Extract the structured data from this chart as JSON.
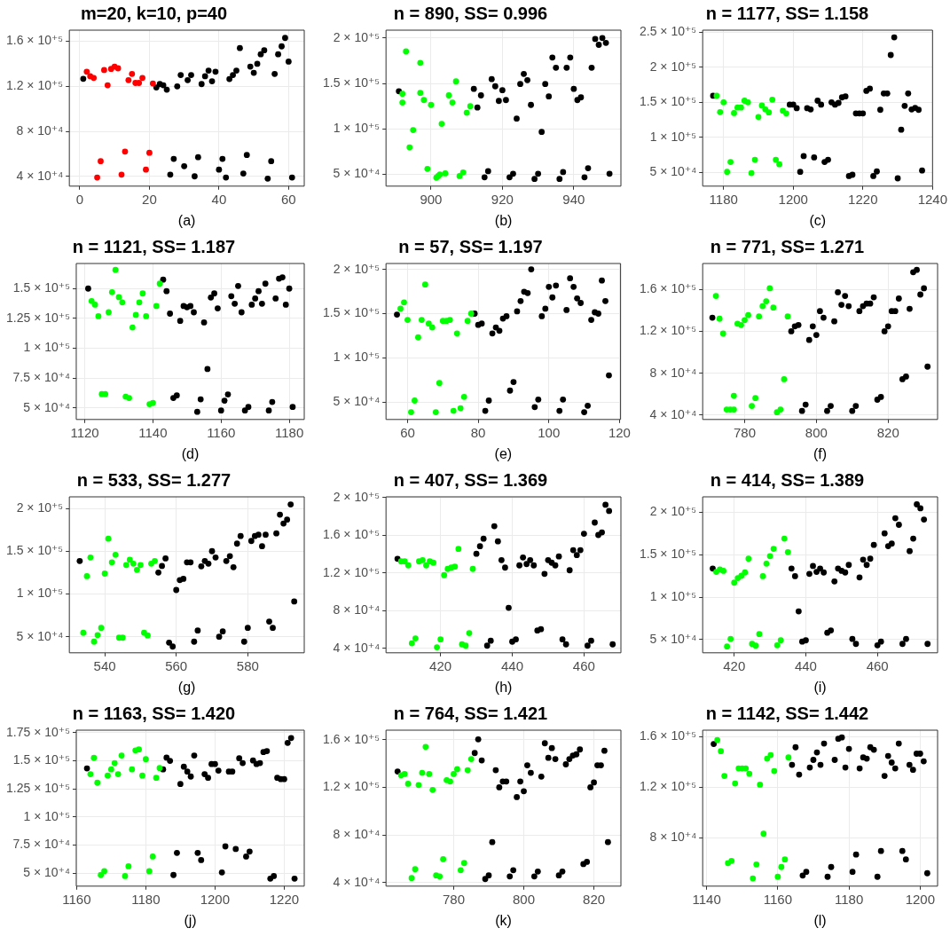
{
  "chart_data": [
    {
      "type": "scatter",
      "title": "m=20, k=10, p=40",
      "xlabel": "(a)",
      "xlim": [
        -3,
        64.5
      ],
      "ylim": [
        31300,
        169900
      ],
      "xticks": [
        0,
        20,
        40,
        60
      ],
      "yticks": [
        {
          "value": 40000,
          "label": "4 × 10⁺⁴"
        },
        {
          "value": 80000,
          "label": "8 × 10⁺⁴"
        },
        {
          "value": 120000,
          "label": "1.2 × 10⁺⁵"
        },
        {
          "value": 160000,
          "label": "1.6 × 10⁺⁵"
        }
      ],
      "grid": true,
      "marker": "circle",
      "series": [
        {
          "color": "#ff0000",
          "x": [
            2,
            3,
            4,
            5,
            6,
            7,
            8,
            9,
            10,
            11,
            12,
            13,
            14,
            15,
            16,
            17,
            18,
            19,
            20,
            21
          ],
          "values": [
            133000,
            129000,
            127500,
            39000,
            53500,
            134500,
            121000,
            135500,
            137500,
            136000,
            41500,
            62000,
            125500,
            131000,
            123000,
            123000,
            127500,
            46000,
            61000,
            122500
          ]
        },
        {
          "color": "#000000",
          "x": [
            1,
            22,
            23,
            24,
            25,
            26,
            27,
            28,
            29,
            30,
            31,
            32,
            33,
            34,
            35,
            36,
            37,
            38,
            39,
            40,
            41,
            42,
            43,
            44,
            45,
            46,
            47,
            48,
            49,
            50,
            51,
            52,
            53,
            54,
            55,
            56,
            57,
            58,
            59,
            60,
            61
          ],
          "values": [
            126700,
            119000,
            122000,
            121000,
            117000,
            41500,
            55500,
            120000,
            130000,
            49000,
            125500,
            130000,
            40000,
            57000,
            122000,
            129000,
            134000,
            124500,
            133000,
            46000,
            55500,
            39000,
            126500,
            130000,
            134000,
            154000,
            42500,
            59000,
            137500,
            132000,
            140000,
            148500,
            152000,
            38000,
            53500,
            131000,
            148500,
            155500,
            163000,
            142000,
            39000
          ]
        }
      ]
    },
    {
      "type": "scatter",
      "title": "n = 890, SS= 0.996",
      "xlabel": "(b)",
      "xlim": [
        887.4,
        953.2
      ],
      "ylim": [
        37100,
        208600
      ],
      "xticks": [
        900,
        920,
        940
      ],
      "yticks": [
        {
          "value": 50000,
          "label": "5 × 10⁺⁴"
        },
        {
          "value": 100000,
          "label": "1 × 10⁺⁵"
        },
        {
          "value": 150000,
          "label": "1.5 × 10⁺⁵"
        },
        {
          "value": 200000,
          "label": "2 × 10⁺⁵"
        }
      ],
      "grid": true,
      "marker": "circle",
      "series": [
        {
          "color": "#00ff00",
          "x": [
            892,
            892,
            893,
            894,
            895,
            897,
            897,
            898,
            899,
            900,
            901.5,
            902,
            902.5,
            903,
            904,
            905,
            906,
            907,
            908,
            909,
            910,
            911
          ],
          "values": [
            129000,
            138600,
            185300,
            79800,
            98800,
            172700,
            139700,
            131800,
            56100,
            126400,
            46400,
            48200,
            50000,
            105600,
            51100,
            136900,
            129000,
            152300,
            48200,
            52200,
            117800,
            125000
          ]
        },
        {
          "color": "#000000",
          "x": [
            891,
            912,
            913,
            914,
            915,
            916,
            917,
            918,
            919,
            920,
            921,
            922,
            923,
            924,
            925,
            926,
            927,
            928,
            929,
            930,
            931,
            932,
            933,
            934,
            935,
            936,
            937,
            938,
            939,
            940,
            941,
            942,
            943,
            944,
            945,
            946,
            947,
            948,
            949,
            950
          ],
          "values": [
            141500,
            144000,
            123600,
            136900,
            46800,
            53600,
            154800,
            146900,
            130800,
            142600,
            131800,
            46800,
            50700,
            111400,
            149400,
            160500,
            153700,
            126400,
            45000,
            50700,
            96700,
            149400,
            135800,
            178500,
            167300,
            45000,
            52600,
            167300,
            178500,
            144000,
            131800,
            134700,
            46800,
            56800,
            167300,
            198900,
            192500,
            200000,
            194600,
            50700
          ]
        }
      ]
    },
    {
      "type": "scatter",
      "title": "n = 1177, SS= 1.158",
      "xlabel": "(c)",
      "xlim": [
        1174,
        1240
      ],
      "ylim": [
        30500,
        252800
      ],
      "xticks": [
        1180,
        1200,
        1220,
        1240
      ],
      "yticks": [
        {
          "value": 50000,
          "label": "5 × 10⁺⁴"
        },
        {
          "value": 100000,
          "label": "1 × 10⁺⁵"
        },
        {
          "value": 150000,
          "label": "1.5 × 10⁺⁵"
        },
        {
          "value": 200000,
          "label": "2 × 10⁺⁵"
        },
        {
          "value": 250000,
          "label": "2.5 × 10⁺⁵"
        }
      ],
      "grid": true,
      "marker": "circle",
      "series": [
        {
          "color": "#00ff00",
          "x": [
            1178,
            1179,
            1180,
            1181,
            1182,
            1183,
            1184,
            1185,
            1186,
            1187,
            1188,
            1189,
            1190,
            1191,
            1192,
            1193,
            1194,
            1195,
            1196,
            1197,
            1198
          ],
          "values": [
            159300,
            136000,
            150000,
            50900,
            64900,
            134700,
            142600,
            142600,
            152300,
            150000,
            49100,
            68100,
            129100,
            145300,
            139800,
            135600,
            153700,
            68100,
            61600,
            137900,
            134200
          ]
        },
        {
          "color": "#000000",
          "x": [
            1177,
            1199,
            1200,
            1201,
            1202,
            1203,
            1204,
            1205,
            1206,
            1207,
            1208,
            1209,
            1210,
            1211,
            1212,
            1213,
            1214,
            1215,
            1216,
            1217,
            1218,
            1219,
            1220,
            1221,
            1222,
            1223,
            1224,
            1225,
            1226,
            1227,
            1228,
            1229,
            1230,
            1231,
            1232,
            1233,
            1234,
            1235,
            1236,
            1237
          ],
          "values": [
            159300,
            146700,
            146700,
            141600,
            50900,
            73300,
            141600,
            139800,
            71400,
            152300,
            146700,
            64900,
            68100,
            150000,
            146700,
            149100,
            157000,
            158400,
            44900,
            46700,
            134200,
            134200,
            134200,
            166300,
            169500,
            44900,
            51400,
            139300,
            162600,
            162600,
            217400,
            242600,
            41600,
            110900,
            144900,
            162600,
            139800,
            142100,
            139300,
            52800
          ]
        }
      ]
    },
    {
      "type": "scatter",
      "title": "n = 1121, SS= 1.187",
      "xlabel": "(d)",
      "xlim": [
        1117.5,
        1184.4
      ],
      "ylim": [
        40300,
        171000
      ],
      "xticks": [
        1120,
        1140,
        1160,
        1180
      ],
      "yticks": [
        {
          "value": 50000,
          "label": "5 × 10⁺⁴"
        },
        {
          "value": 75000,
          "label": "7.5 × 10⁺⁴"
        },
        {
          "value": 100000,
          "label": "1 × 10⁺⁵"
        },
        {
          "value": 125000,
          "label": "1.25 × 10⁺⁵"
        },
        {
          "value": 150000,
          "label": "1.5 × 10⁺⁵"
        }
      ],
      "grid": true,
      "marker": "circle",
      "series": [
        {
          "color": "#00ff00",
          "x": [
            1122,
            1123,
            1124,
            1125,
            1126,
            1127,
            1128,
            1129,
            1130,
            1131,
            1132,
            1133,
            1134,
            1135,
            1136,
            1137,
            1138,
            1139,
            1140,
            1141,
            1142
          ],
          "values": [
            139500,
            136500,
            126800,
            61600,
            61600,
            130100,
            147000,
            165700,
            142800,
            138400,
            59400,
            58300,
            117400,
            127900,
            138400,
            145900,
            126800,
            53100,
            54200,
            135400,
            154100
          ]
        },
        {
          "color": "#000000",
          "x": [
            1121,
            1143,
            1144,
            1145,
            1146,
            1147,
            1148,
            1149,
            1150,
            1151,
            1152,
            1153,
            1154,
            1155,
            1156,
            1157,
            1158,
            1159,
            1160,
            1161,
            1162,
            1163,
            1164,
            1165,
            1166,
            1167,
            1168,
            1169,
            1170,
            1171,
            1172,
            1173,
            1174,
            1175,
            1176,
            1177,
            1178,
            1179,
            1180,
            1181
          ],
          "values": [
            150000,
            157500,
            147800,
            129000,
            58300,
            60500,
            122900,
            135400,
            134300,
            135400,
            130100,
            46700,
            57200,
            121600,
            82600,
            142500,
            145900,
            133400,
            47800,
            56100,
            61300,
            143600,
            137300,
            152200,
            130100,
            47800,
            50800,
            136500,
            141700,
            147800,
            137300,
            154100,
            47800,
            55000,
            141700,
            158300,
            159400,
            136500,
            150000,
            50800
          ]
        }
      ]
    },
    {
      "type": "scatter",
      "title": "n = 57, SS= 1.197",
      "xlabel": "(e)",
      "xlim": [
        53.9,
        120.3
      ],
      "ylim": [
        30200,
        206700
      ],
      "xticks": [
        60,
        80,
        100,
        120
      ],
      "yticks": [
        {
          "value": 50000,
          "label": "5 × 10⁺⁴"
        },
        {
          "value": 100000,
          "label": "1 × 10⁺⁵"
        },
        {
          "value": 150000,
          "label": "1.5 × 10⁺⁵"
        },
        {
          "value": 200000,
          "label": "2 × 10⁺⁵"
        }
      ],
      "grid": true,
      "marker": "circle",
      "series": [
        {
          "color": "#00ff00",
          "x": [
            58,
            59,
            60,
            61,
            62,
            63,
            64,
            65,
            66,
            67,
            68,
            69,
            70,
            71,
            72,
            73,
            74,
            75,
            76,
            77,
            78
          ],
          "values": [
            155600,
            162700,
            142900,
            38500,
            51600,
            123100,
            142900,
            182900,
            138800,
            134300,
            38500,
            71500,
            141800,
            141800,
            142900,
            40000,
            127600,
            43000,
            55800,
            141800,
            150000
          ]
        },
        {
          "color": "#000000",
          "x": [
            57,
            79,
            80,
            81,
            82,
            83,
            84,
            85,
            86,
            87,
            88,
            89,
            90,
            91,
            92,
            93,
            94,
            95,
            96,
            97,
            98,
            99,
            100,
            101,
            102,
            103,
            104,
            105,
            106,
            107,
            108,
            109,
            110,
            111,
            112,
            113,
            114,
            115,
            116,
            117
          ],
          "values": [
            148900,
            150000,
            137300,
            138800,
            40000,
            51600,
            127600,
            134300,
            130600,
            144400,
            147000,
            62900,
            72600,
            152600,
            164200,
            174700,
            173200,
            200100,
            44200,
            52800,
            147000,
            155600,
            180300,
            168300,
            181800,
            40000,
            52800,
            154100,
            190000,
            180300,
            167200,
            162000,
            38500,
            45700,
            142900,
            151500,
            150000,
            187400,
            164200,
            80100
          ]
        }
      ]
    },
    {
      "type": "scatter",
      "title": "n = 771, SS= 1.271",
      "xlabel": "(f)",
      "xlim": [
        768.3,
        833.8
      ],
      "ylim": [
        35900,
        185000
      ],
      "xticks": [
        780,
        800,
        820
      ],
      "yticks": [
        {
          "value": 40000,
          "label": "4 × 10⁺⁴"
        },
        {
          "value": 80000,
          "label": "8 × 10⁺⁴"
        },
        {
          "value": 120000,
          "label": "1.2 × 10⁺⁵"
        },
        {
          "value": 160000,
          "label": "1.6 × 10⁺⁵"
        }
      ],
      "grid": true,
      "marker": "circle",
      "series": [
        {
          "color": "#00ff00",
          "x": [
            772,
            773,
            774,
            775,
            776,
            777,
            777,
            778,
            779,
            780,
            781,
            782,
            783,
            784,
            785,
            786,
            787,
            788,
            789,
            790,
            791,
            792
          ],
          "values": [
            154000,
            132200,
            118000,
            45400,
            45400,
            45400,
            58600,
            127500,
            126200,
            130900,
            135700,
            48800,
            56400,
            134400,
            144200,
            148900,
            161300,
            142900,
            42800,
            45400,
            74400,
            134400
          ]
        },
        {
          "color": "#000000",
          "x": [
            771,
            793,
            794,
            795,
            796,
            797,
            798,
            799,
            800,
            801,
            802,
            803,
            804,
            805,
            806,
            807,
            808,
            809,
            810,
            811,
            812,
            813,
            814,
            815,
            816,
            817,
            818,
            819,
            820,
            821,
            822,
            823,
            824,
            825,
            826,
            827,
            828,
            829,
            830,
            831
          ],
          "values": [
            133200,
            120200,
            124900,
            126200,
            44100,
            50100,
            111900,
            124900,
            116700,
            139500,
            133200,
            44100,
            48800,
            129700,
            157500,
            145500,
            154000,
            144200,
            44100,
            48800,
            139500,
            144200,
            146700,
            146700,
            152700,
            54800,
            57400,
            120200,
            124900,
            139500,
            139500,
            151500,
            74400,
            76900,
            141700,
            176700,
            178900,
            155300,
            161300,
            86400
          ]
        }
      ]
    },
    {
      "type": "scatter",
      "title": "n = 533, SS= 1.277",
      "xlabel": "(g)",
      "xlim": [
        530.1,
        595.8
      ],
      "ylim": [
        31200,
        213500
      ],
      "xticks": [
        540,
        560,
        580
      ],
      "yticks": [
        {
          "value": 50000,
          "label": "5 × 10⁺⁴"
        },
        {
          "value": 100000,
          "label": "1 × 10⁺⁵"
        },
        {
          "value": 150000,
          "label": "1.5 × 10⁺⁵"
        },
        {
          "value": 200000,
          "label": "2 × 10⁺⁵"
        }
      ],
      "grid": true,
      "marker": "circle",
      "series": [
        {
          "color": "#00ff00",
          "x": [
            534,
            535,
            536,
            537,
            538,
            539,
            540,
            541,
            542,
            543,
            544,
            545,
            546,
            547,
            548,
            549,
            550,
            551,
            552,
            553,
            554
          ],
          "values": [
            54600,
            120800,
            142700,
            44200,
            51900,
            60400,
            123800,
            164600,
            136900,
            145800,
            48900,
            48900,
            133800,
            140000,
            135400,
            128100,
            133800,
            54600,
            51500,
            135400,
            138500
          ]
        },
        {
          "color": "#000000",
          "x": [
            533,
            555,
            556,
            557,
            558,
            559,
            560,
            561,
            562,
            563,
            564,
            565,
            566,
            567,
            568,
            569,
            570,
            571,
            572,
            573,
            574,
            575,
            576,
            577,
            578,
            579,
            580,
            581,
            582,
            583,
            584,
            585,
            586,
            587,
            588,
            589,
            590,
            591,
            592,
            593
          ],
          "values": [
            138500,
            125000,
            132700,
            141500,
            43100,
            38500,
            104600,
            116200,
            117700,
            136900,
            136900,
            44200,
            57300,
            132300,
            138500,
            135400,
            150000,
            142700,
            50000,
            56200,
            138500,
            144200,
            131200,
            158800,
            167700,
            44200,
            60400,
            161900,
            167700,
            169200,
            155800,
            169200,
            67700,
            60400,
            170800,
            192700,
            182300,
            186900,
            204600,
            91200
          ]
        }
      ]
    },
    {
      "type": "scatter",
      "title": "n = 407, SS= 1.369",
      "xlabel": "(h)",
      "xlim": [
        404.8,
        470.3
      ],
      "ylim": [
        35200,
        200700
      ],
      "xticks": [
        420,
        440,
        460
      ],
      "yticks": [
        {
          "value": 40000,
          "label": "4 × 10⁺⁴"
        },
        {
          "value": 80000,
          "label": "8 × 10⁺⁴"
        },
        {
          "value": 120000,
          "label": "1.2 × 10⁺⁵"
        },
        {
          "value": 160000,
          "label": "1.6 × 10⁺⁵"
        },
        {
          "value": 200000,
          "label": "2 × 10⁺⁵"
        }
      ],
      "grid": true,
      "marker": "circle",
      "series": [
        {
          "color": "#00ff00",
          "x": [
            409,
            410,
            411,
            412,
            413,
            414,
            415,
            416,
            417,
            418,
            419,
            420,
            421,
            422,
            423,
            424,
            425,
            426,
            427,
            428,
            429
          ],
          "values": [
            132200,
            132200,
            128000,
            45300,
            50500,
            132200,
            133600,
            128000,
            132200,
            130800,
            41100,
            49400,
            117600,
            124200,
            125600,
            126600,
            145500,
            44200,
            42800,
            56100,
            124200
          ]
        },
        {
          "color": "#000000",
          "x": [
            408,
            430,
            431,
            432,
            433,
            434,
            435,
            436,
            437,
            438,
            439,
            440,
            441,
            442,
            443,
            444,
            445,
            446,
            447,
            448,
            449,
            450,
            451,
            452,
            453,
            454,
            455,
            456,
            457,
            458,
            459,
            460,
            461,
            462,
            463,
            464,
            465,
            466,
            467,
            468
          ],
          "values": [
            135000,
            140300,
            148300,
            156300,
            42800,
            48000,
            169600,
            153500,
            133600,
            125600,
            83000,
            47000,
            49400,
            128000,
            136400,
            129400,
            133600,
            128000,
            58900,
            60300,
            119000,
            133600,
            130800,
            128000,
            137500,
            49400,
            44200,
            122800,
            144100,
            138900,
            144100,
            161600,
            42800,
            48000,
            173400,
            160200,
            163000,
            192300,
            185700,
            44200
          ]
        }
      ]
    },
    {
      "type": "scatter",
      "title": "n = 414, SS= 1.389",
      "xlabel": "(i)",
      "xlim": [
        411.2,
        476.8
      ],
      "ylim": [
        34500,
        218200
      ],
      "xticks": [
        420,
        440,
        460
      ],
      "yticks": [
        {
          "value": 50000,
          "label": "5 × 10⁺⁴"
        },
        {
          "value": 100000,
          "label": "1 × 10⁺⁵"
        },
        {
          "value": 150000,
          "label": "1.5 × 10⁺⁵"
        },
        {
          "value": 200000,
          "label": "2 × 10⁺⁵"
        }
      ],
      "grid": true,
      "marker": "circle",
      "series": [
        {
          "color": "#00ff00",
          "x": [
            415,
            416,
            417,
            418,
            419,
            420,
            421,
            422,
            423,
            424,
            425,
            426,
            427,
            428,
            429,
            430,
            431,
            432,
            433,
            434,
            435
          ],
          "values": [
            129800,
            132600,
            131000,
            41900,
            50800,
            117100,
            122500,
            125200,
            129100,
            145300,
            45000,
            43000,
            56600,
            124800,
            139500,
            148400,
            157000,
            43400,
            49200,
            169000,
            153100
          ]
        },
        {
          "color": "#000000",
          "x": [
            414,
            436,
            437,
            438,
            439,
            440,
            441,
            442,
            443,
            444,
            445,
            446,
            447,
            448,
            449,
            450,
            451,
            452,
            453,
            454,
            455,
            456,
            457,
            458,
            459,
            460,
            461,
            462,
            463,
            464,
            465,
            466,
            467,
            468,
            469,
            470,
            471,
            472,
            473,
            474
          ],
          "values": [
            133700,
            133700,
            124800,
            83300,
            47700,
            49200,
            127500,
            136800,
            129800,
            133700,
            129100,
            58100,
            60900,
            118600,
            133700,
            131000,
            129100,
            138000,
            50800,
            45000,
            123300,
            144200,
            138000,
            145300,
            161600,
            43400,
            47700,
            175200,
            160100,
            163200,
            193000,
            185300,
            45000,
            50800,
            154300,
            169000,
            209300,
            204700,
            191500,
            45000
          ]
        }
      ]
    },
    {
      "type": "scatter",
      "title": "n = 1163, SS= 1.420",
      "xlabel": "(j)",
      "xlim": [
        1159.9,
        1225.8
      ],
      "ylim": [
        38400,
        177300
      ],
      "xticks": [
        1160,
        1180,
        1200,
        1220
      ],
      "yticks": [
        {
          "value": 50000,
          "label": "5 × 10⁺⁴"
        },
        {
          "value": 75000,
          "label": "7.5 × 10⁺⁴"
        },
        {
          "value": 100000,
          "label": "1 × 10⁺⁵"
        },
        {
          "value": 125000,
          "label": "1.25 × 10⁺⁵"
        },
        {
          "value": 150000,
          "label": "1.5 × 10⁺⁵"
        },
        {
          "value": 175000,
          "label": "1.75 × 10⁺⁵"
        }
      ],
      "grid": true,
      "marker": "circle",
      "series": [
        {
          "color": "#00ff00",
          "x": [
            1164,
            1165,
            1166,
            1167,
            1168,
            1169,
            1170,
            1171,
            1172,
            1173,
            1174,
            1175,
            1176,
            1177,
            1178,
            1179,
            1180,
            1181,
            1182,
            1183,
            1184
          ],
          "values": [
            138100,
            152600,
            130500,
            48300,
            51700,
            136900,
            142400,
            148000,
            138100,
            154700,
            47400,
            56100,
            142400,
            159300,
            160200,
            136900,
            151500,
            51700,
            64800,
            134900,
            143600
          ]
        },
        {
          "color": "#000000",
          "x": [
            1163,
            1185,
            1186,
            1187,
            1188,
            1189,
            1190,
            1191,
            1192,
            1193,
            1194,
            1195,
            1196,
            1197,
            1198,
            1199,
            1200,
            1201,
            1202,
            1203,
            1204,
            1205,
            1206,
            1207,
            1208,
            1209,
            1210,
            1211,
            1212,
            1213,
            1214,
            1215,
            1216,
            1217,
            1218,
            1219,
            1220,
            1221,
            1222,
            1223
          ],
          "values": [
            143300,
            142400,
            152900,
            150000,
            48300,
            68000,
            129400,
            144800,
            140400,
            136000,
            154700,
            68000,
            61600,
            138100,
            134900,
            147100,
            147100,
            141300,
            50600,
            73800,
            140400,
            140400,
            71500,
            152300,
            148000,
            64800,
            69200,
            150300,
            147100,
            148000,
            157800,
            158700,
            45100,
            47400,
            134900,
            133700,
            133700,
            166000,
            170300,
            45100
          ]
        }
      ]
    },
    {
      "type": "scatter",
      "title": "n = 764, SS= 1.421",
      "xlabel": "(k)",
      "xlim": [
        760.7,
        827.7
      ],
      "ylim": [
        37000,
        168000
      ],
      "xticks": [
        780,
        800,
        820
      ],
      "yticks": [
        {
          "value": 40000,
          "label": "4 × 10⁺⁴"
        },
        {
          "value": 80000,
          "label": "8 × 10⁺⁴"
        },
        {
          "value": 120000,
          "label": "1.2 × 10⁺⁵"
        },
        {
          "value": 160000,
          "label": "1.6 × 10⁺⁵"
        }
      ],
      "grid": true,
      "marker": "circle",
      "series": [
        {
          "color": "#00ff00",
          "x": [
            765,
            766,
            767,
            768,
            769,
            770,
            771,
            772,
            773,
            774,
            775,
            776,
            777,
            778,
            779,
            780,
            781,
            782,
            783,
            784,
            785
          ],
          "values": [
            130100,
            131200,
            123000,
            43800,
            51200,
            121900,
            132200,
            154000,
            131200,
            117800,
            46000,
            45200,
            59600,
            126000,
            124900,
            131200,
            135200,
            50400,
            56400,
            134400,
            143700
          ]
        },
        {
          "color": "#000000",
          "x": [
            764,
            786,
            787,
            788,
            789,
            790,
            791,
            792,
            793,
            794,
            795,
            796,
            797,
            798,
            799,
            800,
            801,
            802,
            803,
            804,
            805,
            806,
            807,
            808,
            809,
            810,
            811,
            812,
            813,
            814,
            815,
            816,
            817,
            818,
            819,
            820,
            821,
            822,
            823,
            824
          ],
          "values": [
            133300,
            148800,
            160300,
            142600,
            43000,
            46000,
            74000,
            134400,
            120000,
            124900,
            124900,
            45200,
            50400,
            111800,
            124900,
            116700,
            138500,
            132200,
            45200,
            49300,
            129000,
            157000,
            144800,
            153000,
            143700,
            46000,
            49300,
            139300,
            143700,
            146700,
            147700,
            151800,
            55500,
            57400,
            120000,
            124100,
            138500,
            138500,
            150700,
            74000
          ]
        }
      ]
    },
    {
      "type": "scatter",
      "title": "n = 1142, SS= 1.442",
      "xlabel": "(l)",
      "xlim": [
        1138.9,
        1204.9
      ],
      "ylim": [
        41900,
        165200
      ],
      "xticks": [
        1140,
        1160,
        1180,
        1200
      ],
      "yticks": [
        {
          "value": 80000,
          "label": "8 × 10⁺⁴"
        },
        {
          "value": 120000,
          "label": "1.2 × 10⁺⁵"
        },
        {
          "value": 160000,
          "label": "1.6 × 10⁺⁵"
        }
      ],
      "grid": true,
      "marker": "circle",
      "series": [
        {
          "color": "#00ff00",
          "x": [
            1143,
            1144,
            1145,
            1146,
            1147,
            1148,
            1149,
            1150,
            1151,
            1152,
            1153,
            1154,
            1155,
            1156,
            1157,
            1158,
            1159,
            1160,
            1161,
            1162,
            1163
          ],
          "values": [
            157400,
            148600,
            129000,
            60100,
            61900,
            123100,
            135000,
            135000,
            135000,
            130800,
            48000,
            59100,
            122100,
            83400,
            142700,
            145500,
            132900,
            49300,
            57000,
            63000,
            143700
          ]
        },
        {
          "color": "#000000",
          "x": [
            1142,
            1164,
            1165,
            1166,
            1167,
            1168,
            1169,
            1170,
            1171,
            1172,
            1173,
            1174,
            1175,
            1176,
            1177,
            1178,
            1179,
            1180,
            1181,
            1182,
            1183,
            1184,
            1185,
            1186,
            1187,
            1188,
            1189,
            1190,
            1191,
            1192,
            1193,
            1194,
            1195,
            1196,
            1197,
            1198,
            1199,
            1200,
            1201,
            1202
          ],
          "values": [
            154300,
            137800,
            151700,
            130100,
            50300,
            53200,
            135700,
            141700,
            147600,
            137800,
            154600,
            49300,
            57000,
            141700,
            158400,
            159500,
            135700,
            150400,
            53200,
            66900,
            135000,
            143700,
            142700,
            151700,
            149700,
            49300,
            69700,
            129000,
            144800,
            139600,
            135000,
            154600,
            69700,
            63000,
            137800,
            133900,
            146600,
            146600,
            140600,
            52100
          ]
        }
      ]
    }
  ]
}
